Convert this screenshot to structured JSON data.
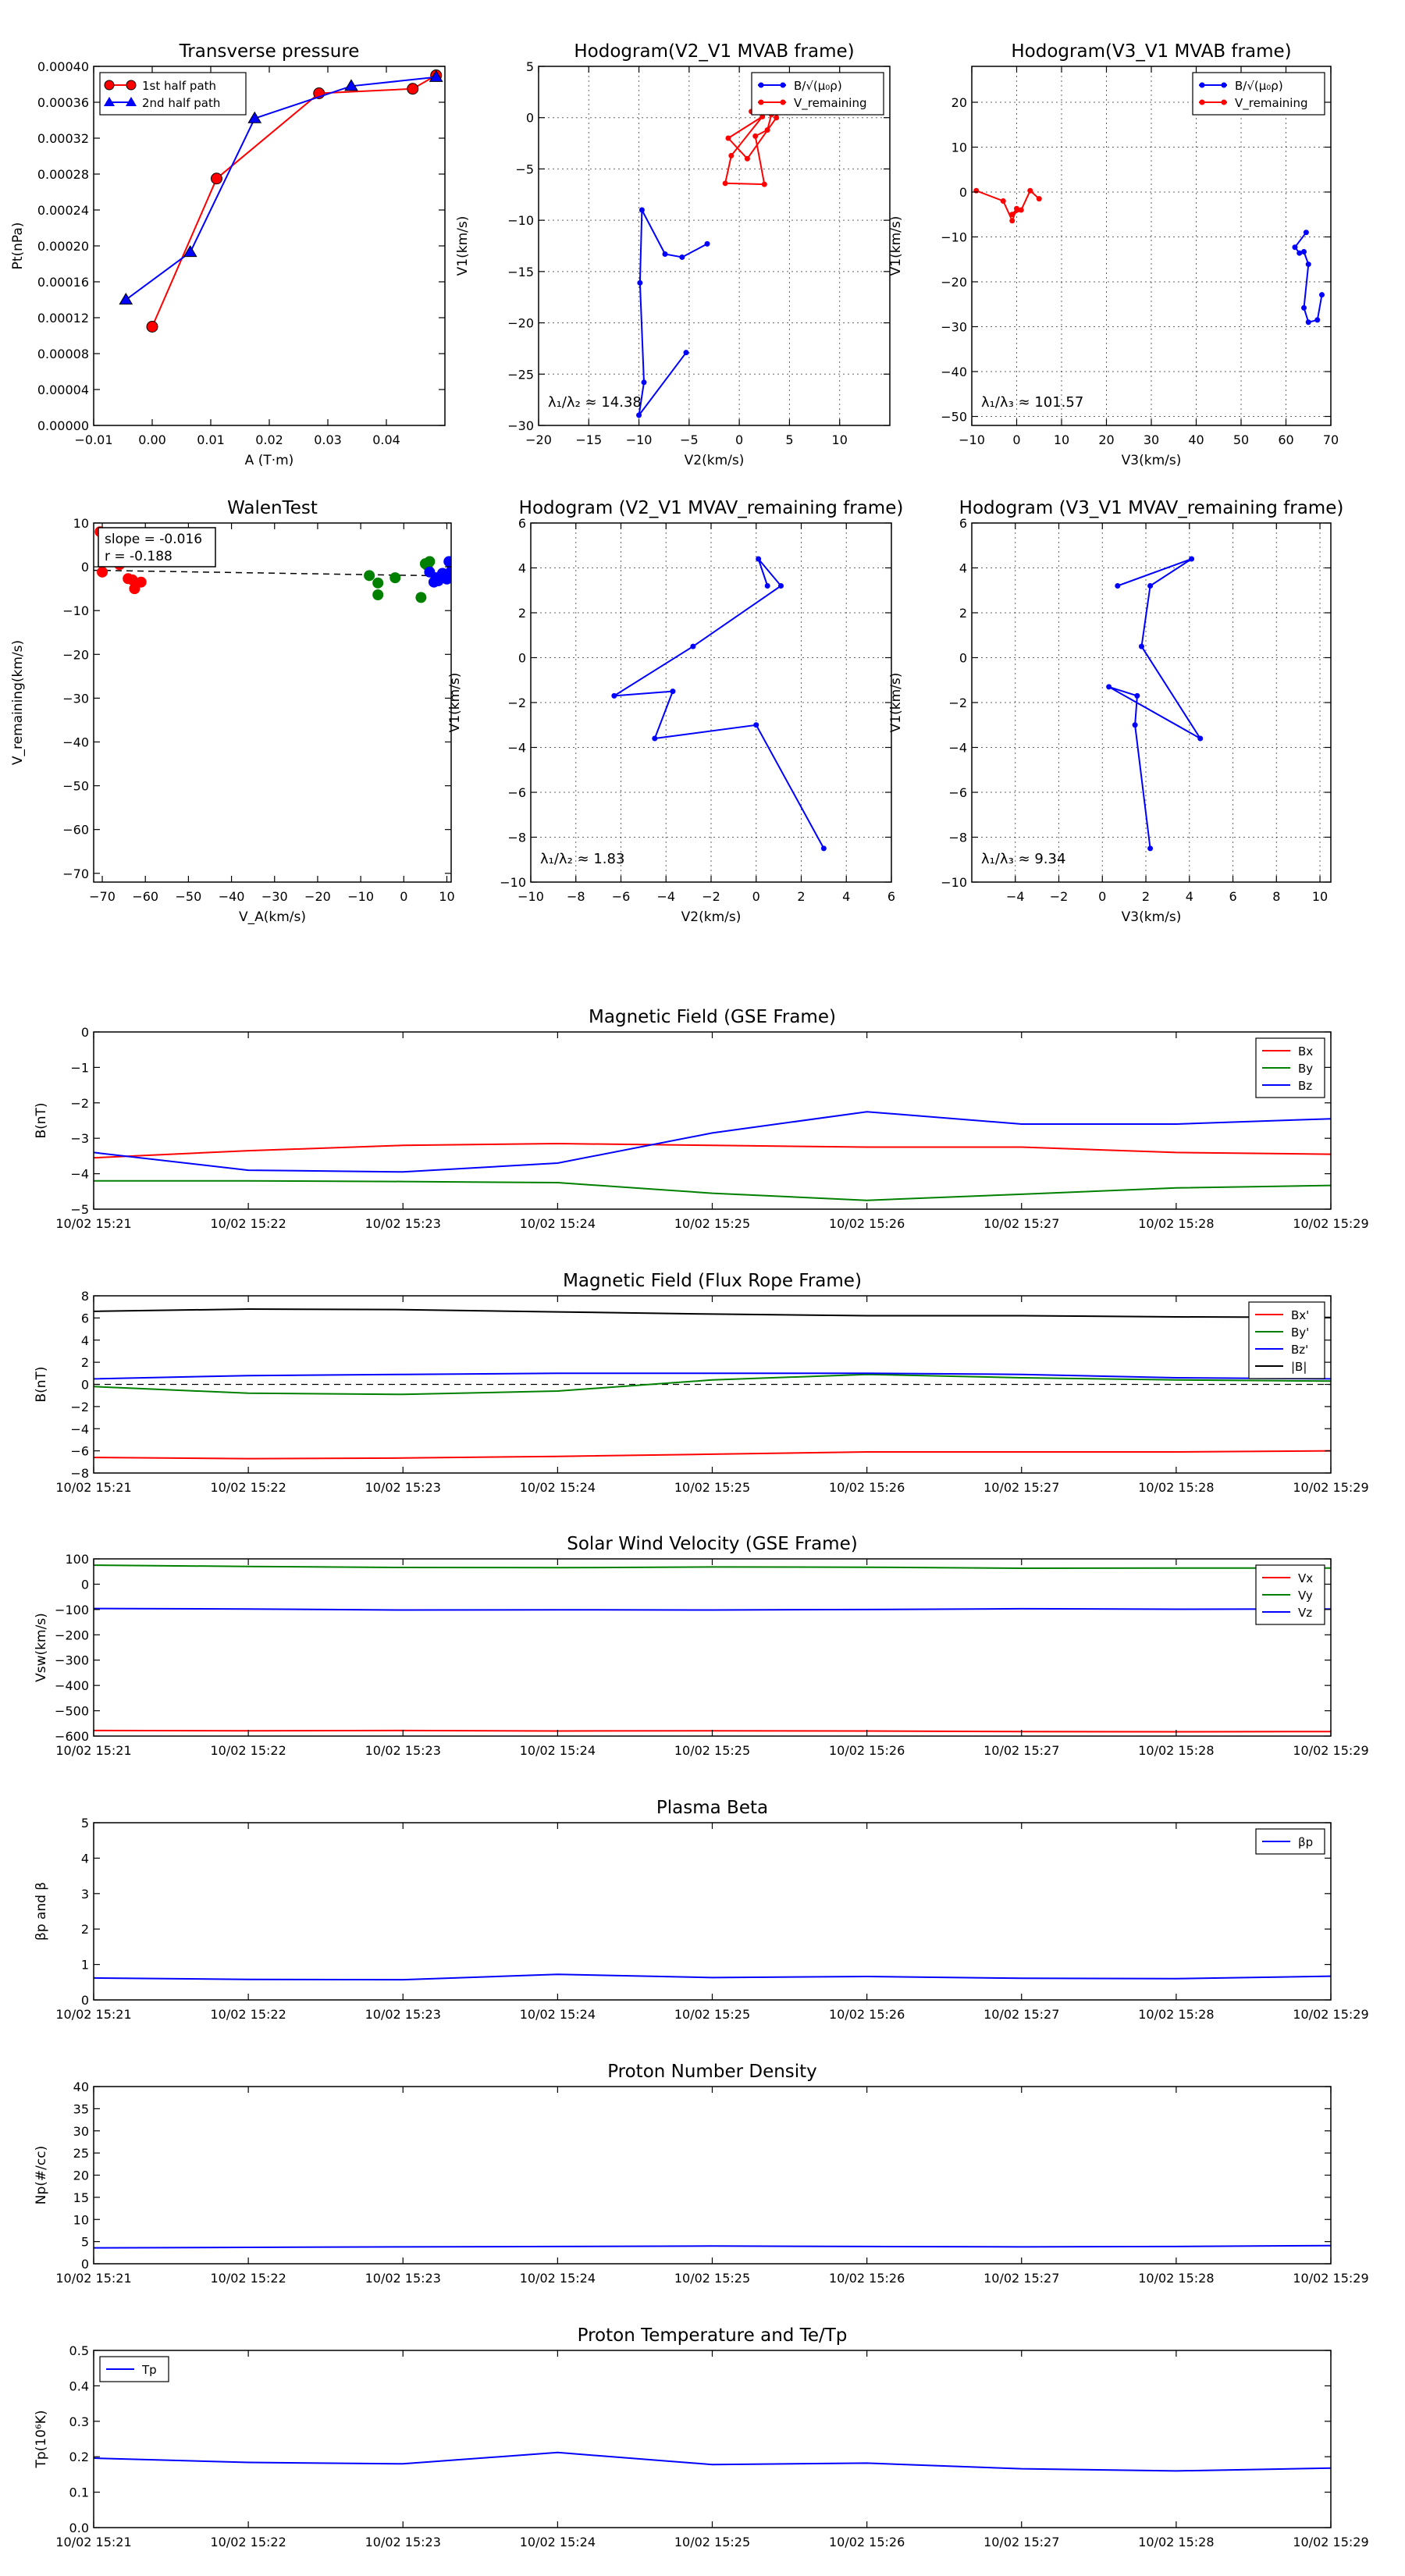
{
  "colors": {
    "red": "#ff0000",
    "blue": "#0000ff",
    "green": "#008000",
    "black": "#000000"
  },
  "chart_data": [
    {
      "id": "transverse_pressure",
      "type": "line",
      "title": "Transverse pressure",
      "xlabel": "A (T·m)",
      "ylabel": "Pt(nPa)",
      "xlim": [
        -0.01,
        0.05
      ],
      "ylim": [
        0,
        0.0004
      ],
      "xticks": [
        -0.01,
        0.0,
        0.01,
        0.02,
        0.03,
        0.04
      ],
      "xtick_labels": [
        "−0.01",
        "0.00",
        "0.01",
        "0.02",
        "0.03",
        "0.04"
      ],
      "yticks": [
        0,
        4e-05,
        8e-05,
        0.00012,
        0.00016,
        0.0002,
        0.00024,
        0.00028,
        0.00032,
        0.00036,
        0.0004
      ],
      "ytick_labels": [
        "0.00000",
        "0.00004",
        "0.00008",
        "0.00012",
        "0.00016",
        "0.00020",
        "0.00024",
        "0.00028",
        "0.00032",
        "0.00036",
        "0.00040"
      ],
      "legend_position": "top-left",
      "series": [
        {
          "name": "1st half path",
          "color": "red",
          "marker": "circle",
          "x": [
            0.0,
            0.011,
            0.0285,
            0.0445,
            0.0485
          ],
          "y": [
            0.00011,
            0.000275,
            0.00037,
            0.000375,
            0.00039
          ]
        },
        {
          "name": "2nd half path",
          "color": "blue",
          "marker": "triangle",
          "x": [
            -0.0045,
            0.0065,
            0.0175,
            0.034,
            0.0485
          ],
          "y": [
            0.00014,
            0.000193,
            0.000342,
            0.000378,
            0.000388
          ]
        }
      ]
    },
    {
      "id": "hodogram_v2v1_mvab",
      "type": "line",
      "title": "Hodogram(V2_V1 MVAB frame)",
      "xlabel": "V2(km/s)",
      "ylabel": "V1(km/s)",
      "xlim": [
        -20,
        15
      ],
      "ylim": [
        -30,
        5
      ],
      "xticks": [
        -20,
        -15,
        -10,
        -5,
        0,
        5,
        10
      ],
      "xtick_labels": [
        "−20",
        "−15",
        "−10",
        "−5",
        "0",
        "5",
        "10"
      ],
      "yticks": [
        -30,
        -25,
        -20,
        -15,
        -10,
        -5,
        0,
        5
      ],
      "ytick_labels": [
        "−30",
        "−25",
        "−20",
        "−15",
        "−10",
        "−5",
        "0",
        "5"
      ],
      "grid": true,
      "legend_position": "top-right",
      "annotation": "λ₁/λ₂ ≈ 14.38",
      "series": [
        {
          "name": "B/√(μ₀ρ)",
          "color": "blue",
          "marker": "dot",
          "x": [
            -5.3,
            -10,
            -9.5,
            -9.9,
            -9.7,
            -7.4,
            -5.7,
            -3.2
          ],
          "y": [
            -22.9,
            -29,
            -25.8,
            -16.1,
            -9,
            -13.3,
            -13.6,
            -12.3
          ]
        },
        {
          "name": "V_remaining",
          "color": "red",
          "marker": "dot",
          "x": [
            1.2,
            3.2,
            2.8,
            1.6,
            2.5,
            -1.4,
            -0.8,
            2.3,
            -1.1,
            0.8,
            3.7
          ],
          "y": [
            0.6,
            0.3,
            -1.2,
            -1.8,
            -6.5,
            -6.4,
            -3.7,
            0.1,
            -2,
            -4,
            0.0
          ]
        }
      ]
    },
    {
      "id": "hodogram_v3v1_mvab",
      "type": "line",
      "title": "Hodogram(V3_V1 MVAB frame)",
      "xlabel": "V3(km/s)",
      "ylabel": "V1(km/s)",
      "xlim": [
        -10,
        70
      ],
      "ylim": [
        -52,
        28
      ],
      "xticks": [
        -10,
        0,
        10,
        20,
        30,
        40,
        50,
        60,
        70
      ],
      "xtick_labels": [
        "−10",
        "0",
        "10",
        "20",
        "30",
        "40",
        "50",
        "60",
        "70"
      ],
      "yticks": [
        -50,
        -40,
        -30,
        -20,
        -10,
        0,
        10,
        20
      ],
      "ytick_labels": [
        "−50",
        "−40",
        "−30",
        "−20",
        "−10",
        "0",
        "10",
        "20"
      ],
      "grid": true,
      "legend_position": "top-right",
      "annotation": "λ₁/λ₃ ≈ 101.57",
      "series": [
        {
          "name": "B/√(μ₀ρ)",
          "color": "blue",
          "marker": "dot",
          "x": [
            68,
            67,
            65,
            64,
            65,
            64,
            63,
            62,
            64.5
          ],
          "y": [
            -22.9,
            -28.5,
            -29,
            -25.8,
            -16.1,
            -13.3,
            -13.6,
            -12.3,
            -9
          ]
        },
        {
          "name": "V_remaining",
          "color": "red",
          "marker": "dot",
          "x": [
            -9,
            -3,
            -1,
            0,
            -1,
            1,
            3,
            5
          ],
          "y": [
            0.3,
            -2,
            -6.4,
            -3.7,
            -5,
            -4,
            0.3,
            -1.5
          ]
        }
      ]
    },
    {
      "id": "walen_test",
      "type": "scatter",
      "title": "WalenTest",
      "xlabel": "V_A(km/s)",
      "ylabel": "V_remaining(km/s)",
      "xlim": [
        -72,
        11
      ],
      "ylim": [
        -72,
        10
      ],
      "xticks": [
        -70,
        -60,
        -50,
        -40,
        -30,
        -20,
        -10,
        0,
        10
      ],
      "xtick_labels": [
        "−70",
        "−60",
        "−50",
        "−40",
        "−30",
        "−20",
        "−10",
        "0",
        "10"
      ],
      "yticks": [
        -70,
        -60,
        -50,
        -40,
        -30,
        -20,
        -10,
        0,
        10
      ],
      "ytick_labels": [
        "−70",
        "−60",
        "−50",
        "−40",
        "−30",
        "−20",
        "−10",
        "0",
        "10"
      ],
      "annotation_lines": [
        "slope = -0.016",
        "r = -0.188"
      ],
      "fit_line": {
        "x": [
          -72,
          11
        ],
        "y": [
          -0.8,
          -2.1
        ]
      },
      "series": [
        {
          "name": "",
          "color": "red",
          "x": [
            -70.5,
            -69.5,
            -70,
            -66,
            -64,
            -62.5,
            -63,
            -61
          ],
          "y": [
            8,
            3,
            -1.2,
            0.5,
            -2.7,
            -5,
            -3,
            -3.5
          ]
        },
        {
          "name": "",
          "color": "green",
          "x": [
            -6,
            -8,
            -6,
            -2,
            4,
            5,
            6,
            5.5
          ],
          "y": [
            -6.4,
            -2,
            -3.7,
            -2.5,
            -7,
            0.7,
            1.2,
            0.3
          ]
        },
        {
          "name": "",
          "color": "blue",
          "x": [
            6,
            7,
            8,
            9,
            9.5,
            10,
            10.5,
            11,
            7.5,
            10
          ],
          "y": [
            -1.2,
            -3.5,
            -3.2,
            -1.5,
            -2.3,
            -2.8,
            1.2,
            -1,
            -2.5,
            -2
          ]
        }
      ]
    },
    {
      "id": "hodogram_v2v1_mvav",
      "type": "line",
      "title": "Hodogram (V2_V1 MVAV_remaining frame)",
      "xlabel": "V2(km/s)",
      "ylabel": "V1(km/s)",
      "xlim": [
        -10,
        6
      ],
      "ylim": [
        -10,
        6
      ],
      "xticks": [
        -10,
        -8,
        -6,
        -4,
        -2,
        0,
        2,
        4,
        6
      ],
      "xtick_labels": [
        "−10",
        "−8",
        "−6",
        "−4",
        "−2",
        "0",
        "2",
        "4",
        "6"
      ],
      "yticks": [
        -10,
        -8,
        -6,
        -4,
        -2,
        0,
        2,
        4,
        6
      ],
      "ytick_labels": [
        "−10",
        "−8",
        "−6",
        "−4",
        "−2",
        "0",
        "2",
        "4",
        "6"
      ],
      "grid": true,
      "annotation": "λ₁/λ₂ ≈ 1.83",
      "series": [
        {
          "name": "",
          "color": "blue",
          "marker": "dot",
          "x": [
            3,
            0,
            -4.5,
            -3.7,
            -6.3,
            -2.8,
            1.1,
            0.1,
            0.5
          ],
          "y": [
            -8.5,
            -3,
            -3.6,
            -1.5,
            -1.7,
            0.5,
            3.2,
            4.4,
            3.2
          ]
        }
      ]
    },
    {
      "id": "hodogram_v3v1_mvav",
      "type": "line",
      "title": "Hodogram (V3_V1 MVAV_remaining frame)",
      "xlabel": "V3(km/s)",
      "ylabel": "V1(km/s)",
      "xlim": [
        -6,
        10.5
      ],
      "ylim": [
        -10,
        6
      ],
      "xticks": [
        -4,
        -2,
        0,
        2,
        4,
        6,
        8,
        10
      ],
      "xtick_labels": [
        "−4",
        "−2",
        "0",
        "2",
        "4",
        "6",
        "8",
        "10"
      ],
      "yticks": [
        -10,
        -8,
        -6,
        -4,
        -2,
        0,
        2,
        4,
        6
      ],
      "ytick_labels": [
        "−10",
        "−8",
        "−6",
        "−4",
        "−2",
        "0",
        "2",
        "4",
        "6"
      ],
      "grid": true,
      "annotation": "λ₁/λ₃ ≈ 9.34",
      "series": [
        {
          "name": "",
          "color": "blue",
          "marker": "dot",
          "x": [
            2.2,
            1.5,
            1.6,
            0.3,
            4.5,
            1.8,
            2.2,
            4.1,
            0.7
          ],
          "y": [
            -8.5,
            -3,
            -1.7,
            -1.3,
            -3.6,
            0.5,
            3.2,
            4.4,
            3.2
          ]
        }
      ]
    },
    {
      "id": "mag_field_gse",
      "type": "line",
      "title": "Magnetic Field (GSE Frame)",
      "xlabel": "",
      "ylabel": "B(nT)",
      "x": [
        "10/02 15:21",
        "10/02 15:22",
        "10/02 15:23",
        "10/02 15:24",
        "10/02 15:25",
        "10/02 15:26",
        "10/02 15:27",
        "10/02 15:28",
        "10/02 15:29"
      ],
      "ylim": [
        -5,
        0
      ],
      "yticks": [
        -5,
        -4,
        -3,
        -2,
        -1,
        0
      ],
      "ytick_labels": [
        "−5",
        "−4",
        "−3",
        "−2",
        "−1",
        "0"
      ],
      "legend_position": "top-right",
      "series": [
        {
          "name": "Bx",
          "color": "red",
          "values": [
            -3.55,
            -3.35,
            -3.2,
            -3.15,
            -3.2,
            -3.25,
            -3.25,
            -3.4,
            -3.45
          ]
        },
        {
          "name": "By",
          "color": "green",
          "values": [
            -4.2,
            -4.2,
            -4.22,
            -4.25,
            -4.55,
            -4.75,
            -4.58,
            -4.4,
            -4.33
          ]
        },
        {
          "name": "Bz",
          "color": "blue",
          "values": [
            -3.4,
            -3.9,
            -3.95,
            -3.7,
            -2.85,
            -2.25,
            -2.6,
            -2.6,
            -2.45
          ]
        }
      ]
    },
    {
      "id": "mag_field_flux_rope",
      "type": "line",
      "title": "Magnetic Field (Flux Rope Frame)",
      "xlabel": "",
      "ylabel": "B(nT)",
      "x": [
        "10/02 15:21",
        "10/02 15:22",
        "10/02 15:23",
        "10/02 15:24",
        "10/02 15:25",
        "10/02 15:26",
        "10/02 15:27",
        "10/02 15:28",
        "10/02 15:29"
      ],
      "ylim": [
        -8,
        8
      ],
      "yticks": [
        -8,
        -6,
        -4,
        -2,
        0,
        2,
        4,
        6,
        8
      ],
      "ytick_labels": [
        "−8",
        "−6",
        "−4",
        "−2",
        "0",
        "2",
        "4",
        "6",
        "8"
      ],
      "legend_position": "top-right",
      "zero_line": true,
      "series": [
        {
          "name": "Bx'",
          "color": "red",
          "values": [
            -6.6,
            -6.7,
            -6.65,
            -6.5,
            -6.3,
            -6.1,
            -6.1,
            -6.1,
            -6.0
          ]
        },
        {
          "name": "By'",
          "color": "green",
          "values": [
            -0.2,
            -0.8,
            -0.9,
            -0.6,
            0.4,
            0.9,
            0.6,
            0.4,
            0.3
          ]
        },
        {
          "name": "Bz'",
          "color": "blue",
          "values": [
            0.5,
            0.8,
            0.9,
            1.0,
            1.0,
            1.0,
            0.9,
            0.6,
            0.5
          ]
        },
        {
          "name": "|B|",
          "color": "black",
          "values": [
            6.6,
            6.8,
            6.75,
            6.55,
            6.35,
            6.2,
            6.2,
            6.1,
            6.05
          ]
        }
      ]
    },
    {
      "id": "solar_wind_velocity",
      "type": "line",
      "title": "Solar Wind Velocity (GSE Frame)",
      "xlabel": "",
      "ylabel": "Vsw(km/s)",
      "x": [
        "10/02 15:21",
        "10/02 15:22",
        "10/02 15:23",
        "10/02 15:24",
        "10/02 15:25",
        "10/02 15:26",
        "10/02 15:27",
        "10/02 15:28",
        "10/02 15:29"
      ],
      "ylim": [
        -600,
        100
      ],
      "yticks": [
        -600,
        -500,
        -400,
        -300,
        -200,
        -100,
        0,
        100
      ],
      "ytick_labels": [
        "−600",
        "−500",
        "−400",
        "−300",
        "−200",
        "−100",
        "0",
        "100"
      ],
      "legend_position": "top-right",
      "series": [
        {
          "name": "Vx",
          "color": "red",
          "values": [
            -578,
            -579,
            -578,
            -580,
            -579,
            -580,
            -582,
            -583,
            -582
          ]
        },
        {
          "name": "Vy",
          "color": "green",
          "values": [
            75,
            70,
            66,
            65,
            68,
            67,
            63,
            64,
            64
          ]
        },
        {
          "name": "Vz",
          "color": "blue",
          "values": [
            -96,
            -98,
            -102,
            -101,
            -102,
            -100,
            -97,
            -99,
            -98
          ]
        }
      ]
    },
    {
      "id": "plasma_beta",
      "type": "line",
      "title": "Plasma Beta",
      "xlabel": "",
      "ylabel": "βp and β",
      "x": [
        "10/02 15:21",
        "10/02 15:22",
        "10/02 15:23",
        "10/02 15:24",
        "10/02 15:25",
        "10/02 15:26",
        "10/02 15:27",
        "10/02 15:28",
        "10/02 15:29"
      ],
      "ylim": [
        0,
        5
      ],
      "yticks": [
        0,
        1,
        2,
        3,
        4,
        5
      ],
      "ytick_labels": [
        "0",
        "1",
        "2",
        "3",
        "4",
        "5"
      ],
      "legend_position": "top-right",
      "series": [
        {
          "name": "βp",
          "color": "blue",
          "values": [
            0.62,
            0.58,
            0.57,
            0.72,
            0.63,
            0.66,
            0.61,
            0.6,
            0.67
          ]
        }
      ]
    },
    {
      "id": "proton_density",
      "type": "line",
      "title": "Proton Number Density",
      "xlabel": "",
      "ylabel": "Np(#/cc)",
      "x": [
        "10/02 15:21",
        "10/02 15:22",
        "10/02 15:23",
        "10/02 15:24",
        "10/02 15:25",
        "10/02 15:26",
        "10/02 15:27",
        "10/02 15:28",
        "10/02 15:29"
      ],
      "ylim": [
        0,
        40
      ],
      "yticks": [
        0,
        5,
        10,
        15,
        20,
        25,
        30,
        35,
        40
      ],
      "ytick_labels": [
        "0",
        "5",
        "10",
        "15",
        "20",
        "25",
        "30",
        "35",
        "40"
      ],
      "series": [
        {
          "name": "",
          "color": "blue",
          "values": [
            3.6,
            3.7,
            3.8,
            3.9,
            4.0,
            3.9,
            3.8,
            3.9,
            4.1
          ]
        }
      ]
    },
    {
      "id": "proton_temperature",
      "type": "line",
      "title": "Proton Temperature and Te/Tp",
      "xlabel": "",
      "ylabel": "Tp(10⁶K)",
      "x": [
        "10/02 15:21",
        "10/02 15:22",
        "10/02 15:23",
        "10/02 15:24",
        "10/02 15:25",
        "10/02 15:26",
        "10/02 15:27",
        "10/02 15:28",
        "10/02 15:29"
      ],
      "ylim": [
        0,
        0.5
      ],
      "yticks": [
        0,
        0.1,
        0.2,
        0.3,
        0.4,
        0.5
      ],
      "ytick_labels": [
        "0.0",
        "0.1",
        "0.2",
        "0.3",
        "0.4",
        "0.5"
      ],
      "legend_position": "top-left",
      "series": [
        {
          "name": "Tp",
          "color": "blue",
          "values": [
            0.196,
            0.184,
            0.18,
            0.212,
            0.178,
            0.182,
            0.166,
            0.16,
            0.168
          ]
        }
      ]
    }
  ]
}
